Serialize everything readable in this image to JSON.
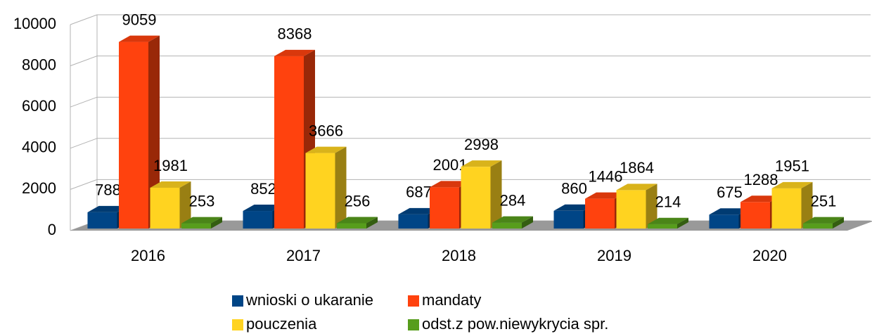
{
  "chart_data": {
    "type": "bar3d",
    "categories": [
      "2016",
      "2017",
      "2018",
      "2019",
      "2020"
    ],
    "series": [
      {
        "name": "wnioski o ukaranie",
        "color": "#004586",
        "values": [
          788,
          852,
          687,
          860,
          675
        ]
      },
      {
        "name": "mandaty",
        "color": "#ff420e",
        "values": [
          9059,
          8368,
          2001,
          1446,
          1288
        ]
      },
      {
        "name": "pouczenia",
        "color": "#ffd320",
        "values": [
          1981,
          3666,
          2998,
          1864,
          1951
        ]
      },
      {
        "name": "odst.z pow.niewykrycia spr.",
        "color": "#579d1c",
        "values": [
          253,
          256,
          284,
          214,
          251
        ]
      }
    ],
    "ylim": [
      0,
      10000
    ],
    "yticks": [
      0,
      2000,
      4000,
      6000,
      8000,
      10000
    ],
    "grid": true
  }
}
